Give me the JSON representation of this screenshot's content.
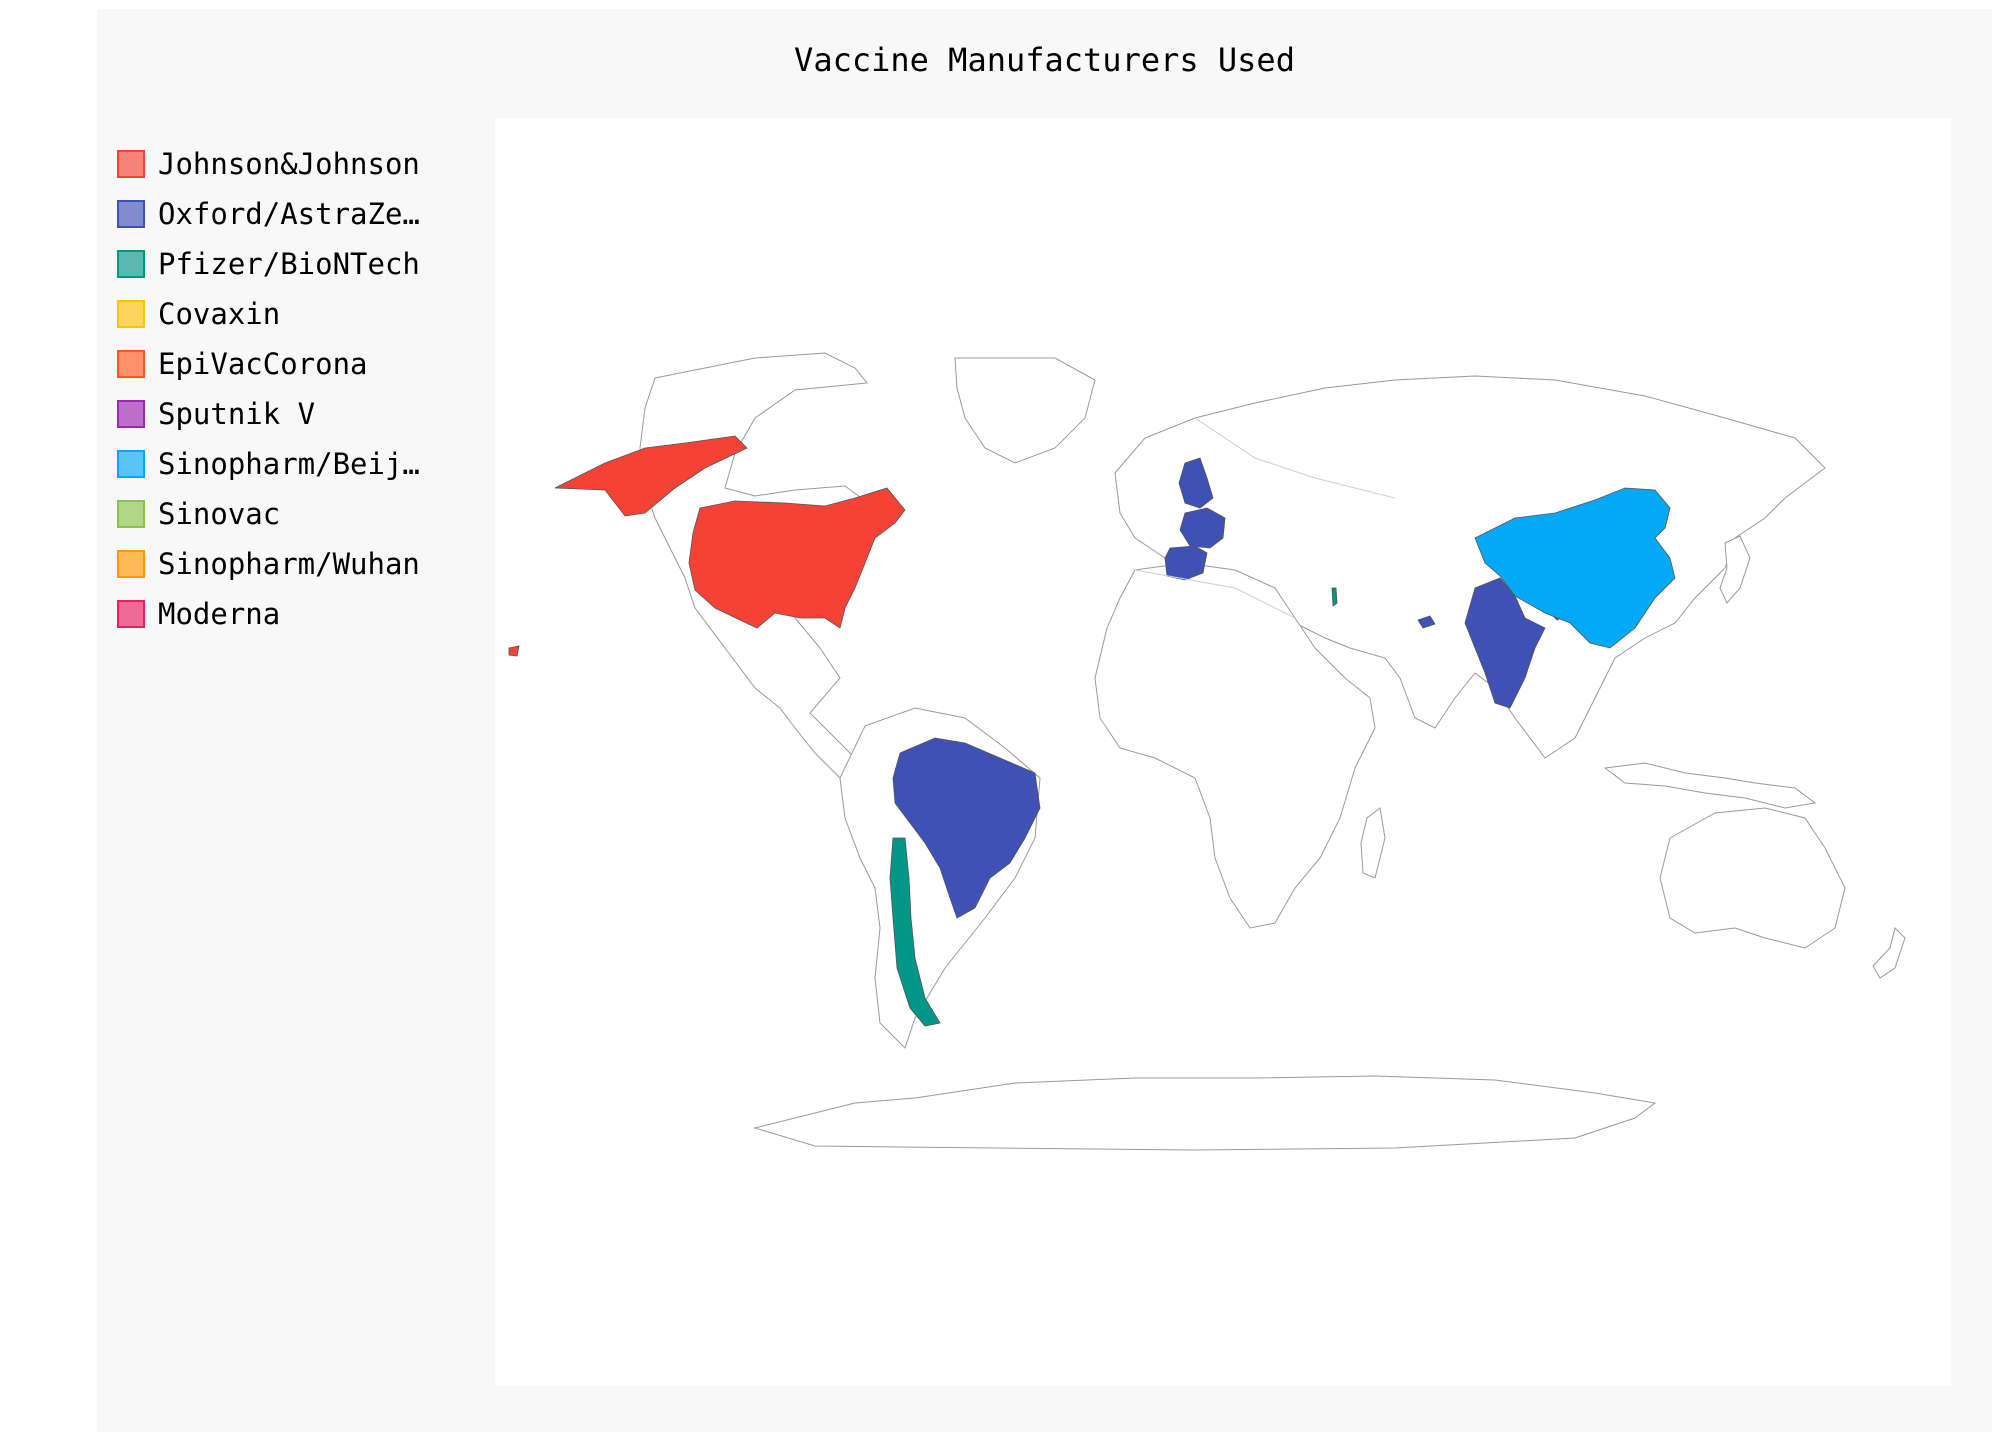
{
  "chart_data": {
    "type": "choropleth",
    "title": "Vaccine Manufacturers Used",
    "legend": {
      "position": "left",
      "items": [
        {
          "label": "Johnson&Johnson",
          "color": "#f44336"
        },
        {
          "label": "Oxford/AstraZe…",
          "color": "#3f51b5"
        },
        {
          "label": "Pfizer/BioNTech",
          "color": "#009688"
        },
        {
          "label": "Covaxin",
          "color": "#ffc107"
        },
        {
          "label": "EpiVacCorona",
          "color": "#ff5722"
        },
        {
          "label": "Sputnik V",
          "color": "#9c27b0"
        },
        {
          "label": "Sinopharm/Beij…",
          "color": "#03a9f4"
        },
        {
          "label": "Sinovac",
          "color": "#8bc34a"
        },
        {
          "label": "Sinopharm/Wuhan",
          "color": "#ff9800"
        },
        {
          "label": "Moderna",
          "color": "#e91e63"
        }
      ]
    },
    "regions": [
      {
        "country": "United States",
        "manufacturer": "Johnson&Johnson"
      },
      {
        "country": "United Kingdom",
        "manufacturer": "Oxford/AstraZeneca"
      },
      {
        "country": "France",
        "manufacturer": "Oxford/AstraZeneca"
      },
      {
        "country": "Spain",
        "manufacturer": "Oxford/AstraZeneca"
      },
      {
        "country": "India",
        "manufacturer": "Oxford/AstraZeneca"
      },
      {
        "country": "Bangladesh",
        "manufacturer": "Oxford/AstraZeneca"
      },
      {
        "country": "Brazil",
        "manufacturer": "Oxford/AstraZeneca"
      },
      {
        "country": "United Arab Emirates",
        "manufacturer": "Oxford/AstraZeneca"
      },
      {
        "country": "Chile",
        "manufacturer": "Pfizer/BioNTech"
      },
      {
        "country": "Israel",
        "manufacturer": "Pfizer/BioNTech"
      },
      {
        "country": "China",
        "manufacturer": "Sinopharm/Beijing"
      }
    ],
    "colors": {
      "panel_background": "#f8f8f8",
      "plot_background": "#ffffff",
      "border": "#9a9a9a"
    }
  }
}
